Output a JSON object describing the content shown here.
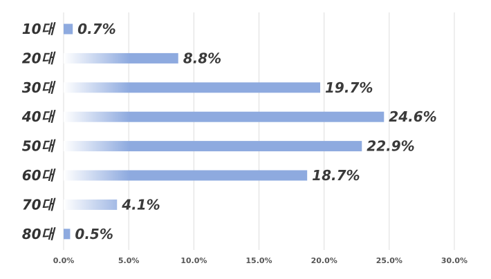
{
  "chart_data": {
    "type": "bar",
    "orientation": "horizontal",
    "categories": [
      "10대",
      "20대",
      "30대",
      "40대",
      "50대",
      "60대",
      "70대",
      "80대"
    ],
    "values": [
      0.7,
      8.8,
      19.7,
      24.6,
      22.9,
      18.7,
      4.1,
      0.5
    ],
    "value_labels": [
      "0.7%",
      "8.8%",
      "19.7%",
      "24.6%",
      "22.9%",
      "18.7%",
      "4.1%",
      "0.5%"
    ],
    "xlim": [
      0,
      30
    ],
    "x_ticks": [
      0,
      5,
      10,
      15,
      20,
      25,
      30
    ],
    "x_tick_labels": [
      "0.0%",
      "5.0%",
      "10.0%",
      "15.0%",
      "20.0%",
      "25.0%",
      "30.0%"
    ],
    "grid": true,
    "legend": "none",
    "title": "",
    "xlabel": "",
    "ylabel": ""
  },
  "colors": {
    "bar": "#8eaadf",
    "grid": "#dcdcdc",
    "label": "#333333"
  }
}
